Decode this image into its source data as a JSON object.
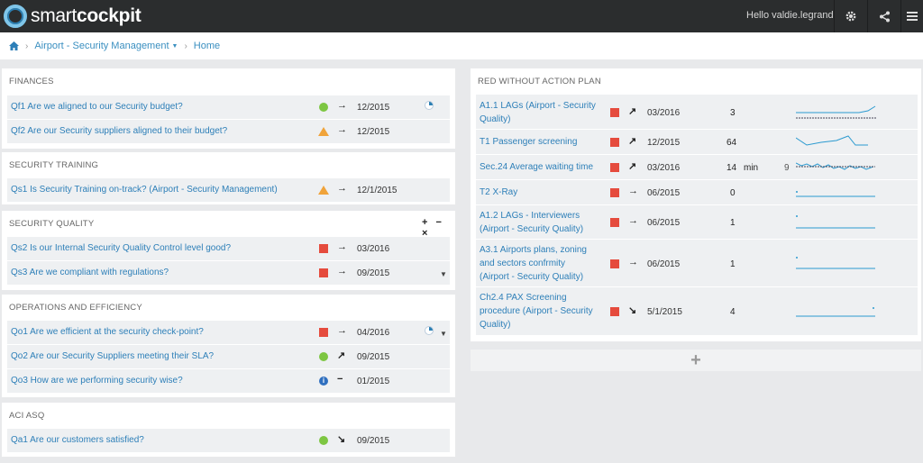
{
  "app": {
    "logo_light": "smart",
    "logo_bold": "cockpit",
    "greeting": "Hello valdie.legrand"
  },
  "breadcrumb": {
    "home_icon": "home-icon",
    "context": "Airport - Security Management",
    "page": "Home"
  },
  "finances": {
    "title": "FINANCES",
    "rows": [
      {
        "label": "Qf1 Are we aligned to our Security budget?",
        "status": "green",
        "trend": "→",
        "period": "12/2015"
      },
      {
        "label": "Qf2 Are our Security suppliers aligned to their budget?",
        "status": "orange",
        "trend": "→",
        "period": "12/2015"
      }
    ]
  },
  "training": {
    "title": "SECURITY TRAINING",
    "rows": [
      {
        "label": "Qs1 Is Security Training on-track? (Airport - Security Management)",
        "status": "orange",
        "trend": "→",
        "period": "12/1/2015"
      }
    ]
  },
  "quality": {
    "title": "SECURITY QUALITY",
    "tools": "+ − ×",
    "rows": [
      {
        "label": "Qs2 Is our Internal Security Quality Control level good?",
        "status": "red",
        "trend": "→",
        "period": "03/2016"
      },
      {
        "label": "Qs3 Are we compliant with regulations?",
        "status": "red",
        "trend": "→",
        "period": "09/2015"
      }
    ]
  },
  "operations": {
    "title": "OPERATIONS AND EFFICIENCY",
    "rows": [
      {
        "label": "Qo1 Are we efficient at the security check-point?",
        "status": "red",
        "trend": "→",
        "period": "04/2016"
      },
      {
        "label": "Qo2 Are our Security Suppliers meeting their SLA?",
        "status": "green",
        "trend": "↗",
        "period": "09/2015"
      },
      {
        "label": "Qo3 How are we performing security wise?",
        "status": "info",
        "trend": "−",
        "period": "01/2015"
      }
    ]
  },
  "aci": {
    "title": "ACI ASQ",
    "rows": [
      {
        "label": "Qa1 Are our customers satisfied?",
        "status": "green",
        "trend": "↘",
        "period": "09/2015"
      }
    ]
  },
  "red_panel": {
    "title": "RED WITHOUT ACTION PLAN",
    "rows": [
      {
        "line1": "A1.1 LAGs (Airport - Security",
        "line2": "Quality)",
        "line3": "",
        "trend": "↗",
        "period": "03/2016",
        "value": "3",
        "unit": "",
        "target": ""
      },
      {
        "line1": "T1 Passenger screening",
        "line2": "",
        "line3": "",
        "trend": "↗",
        "period": "12/2015",
        "value": "64",
        "unit": "",
        "target": ""
      },
      {
        "line1": "Sec.24 Average waiting time",
        "line2": "",
        "line3": "",
        "trend": "↗",
        "period": "03/2016",
        "value": "14",
        "unit": "min",
        "target": "9"
      },
      {
        "line1": "T2 X-Ray",
        "line2": "",
        "line3": "",
        "trend": "→",
        "period": "06/2015",
        "value": "0",
        "unit": "",
        "target": ""
      },
      {
        "line1": "A1.2 LAGs - Interviewers",
        "line2": "(Airport - Security Quality)",
        "line3": "",
        "trend": "→",
        "period": "06/2015",
        "value": "1",
        "unit": "",
        "target": ""
      },
      {
        "line1": "A3.1 Airports plans, zoning",
        "line2": "and sectors confrmity",
        "line3": "(Airport - Security Quality)",
        "trend": "→",
        "period": "06/2015",
        "value": "1",
        "unit": "",
        "target": ""
      },
      {
        "line1": "Ch2.4 PAX Screening",
        "line2": "procedure (Airport - Security",
        "line3": "Quality)",
        "trend": "↘",
        "period": "5/1/2015",
        "value": "4",
        "unit": "",
        "target": ""
      }
    ],
    "add_label": "+"
  },
  "colors": {
    "red": "#e54b3d",
    "green": "#7dc642",
    "orange": "#f0a33a",
    "link": "#2d7fb8",
    "topbar": "#2b2d2e"
  }
}
